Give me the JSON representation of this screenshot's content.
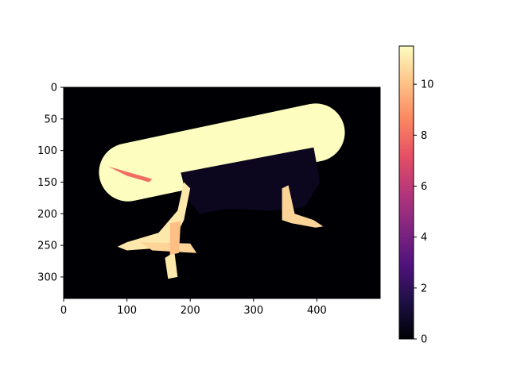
{
  "chart_data": {
    "type": "heatmap",
    "title": "",
    "xlabel": "",
    "ylabel": "",
    "image_shape": [
      334,
      500
    ],
    "xlim": [
      0,
      500
    ],
    "ylim": [
      334,
      0
    ],
    "xticks": [
      0,
      100,
      200,
      300,
      400
    ],
    "yticks": [
      0,
      50,
      100,
      150,
      200,
      250,
      300
    ],
    "colorbar": {
      "colormap": "magma",
      "vmin": 0,
      "vmax": 11.5,
      "ticks": [
        0,
        2,
        4,
        6,
        8,
        10
      ]
    },
    "background_value": 0,
    "regions": [
      {
        "name": "table-top",
        "value": 11.5,
        "shape": "stadium",
        "center": [
          250,
          103
        ],
        "length": 395,
        "height": 92,
        "angle_deg": -12
      },
      {
        "name": "table-apron-shadow",
        "value": 0.6,
        "shape": "polygon",
        "points": [
          [
            185,
            135
          ],
          [
            395,
            95
          ],
          [
            405,
            150
          ],
          [
            380,
            190
          ],
          [
            330,
            195
          ],
          [
            260,
            192
          ],
          [
            215,
            200
          ],
          [
            195,
            175
          ]
        ]
      },
      {
        "name": "left-leg",
        "value": 11.0,
        "shape": "polygon",
        "points": [
          [
            190,
            150
          ],
          [
            200,
            160
          ],
          [
            190,
            210
          ],
          [
            170,
            250
          ],
          [
            140,
            255
          ],
          [
            100,
            258
          ],
          [
            85,
            252
          ],
          [
            100,
            245
          ],
          [
            150,
            230
          ],
          [
            180,
            195
          ]
        ]
      },
      {
        "name": "left-leg-foot",
        "value": 10.5,
        "shape": "polygon",
        "points": [
          [
            120,
            245
          ],
          [
            200,
            247
          ],
          [
            210,
            262
          ],
          [
            140,
            258
          ]
        ]
      },
      {
        "name": "front-leg",
        "value": 11.0,
        "shape": "polygon",
        "points": [
          [
            160,
            270
          ],
          [
            175,
            260
          ],
          [
            180,
            300
          ],
          [
            165,
            303
          ]
        ]
      },
      {
        "name": "front-leg-upper",
        "value": 10.0,
        "shape": "polygon",
        "points": [
          [
            168,
            215
          ],
          [
            185,
            212
          ],
          [
            182,
            262
          ],
          [
            168,
            265
          ]
        ]
      },
      {
        "name": "right-leg",
        "value": 10.5,
        "shape": "polygon",
        "points": [
          [
            345,
            160
          ],
          [
            355,
            155
          ],
          [
            365,
            200
          ],
          [
            395,
            210
          ],
          [
            410,
            220
          ],
          [
            398,
            222
          ],
          [
            360,
            215
          ],
          [
            345,
            210
          ]
        ]
      },
      {
        "name": "left-edge-speckle",
        "value": 8.0,
        "shape": "polygon",
        "points": [
          [
            60,
            120
          ],
          [
            70,
            125
          ],
          [
            140,
            145
          ],
          [
            135,
            150
          ],
          [
            100,
            140
          ]
        ]
      }
    ]
  }
}
